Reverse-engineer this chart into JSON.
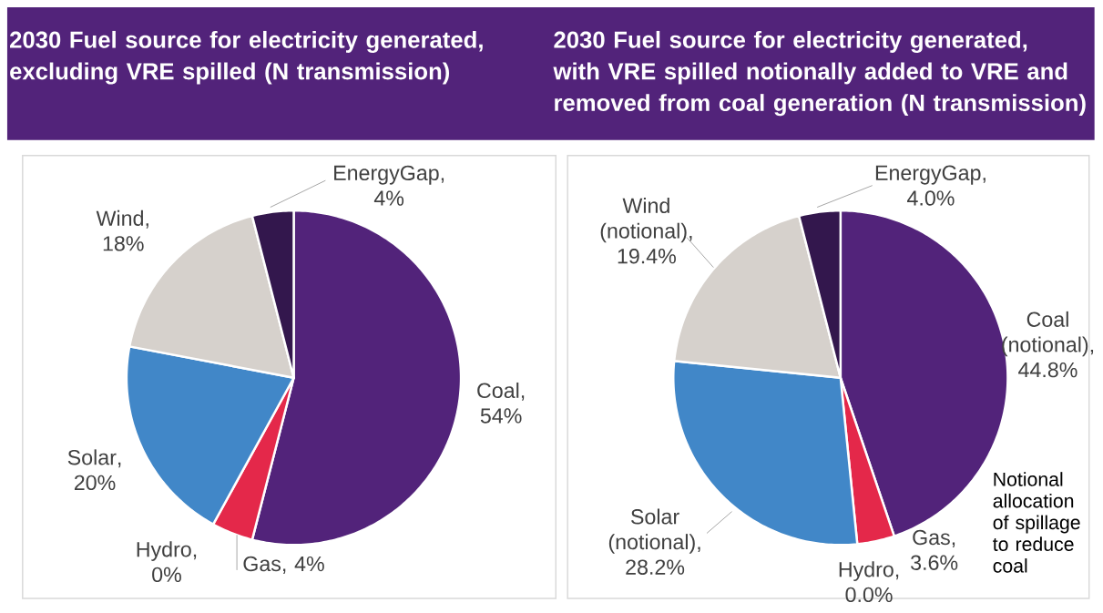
{
  "chart_data": [
    {
      "type": "pie",
      "title": "2030 Fuel source for electricity generated, excluding VRE spilled (N transmission)",
      "categories": [
        "Coal",
        "Gas",
        "Hydro",
        "Solar",
        "Wind",
        "EnergyGap"
      ],
      "values": [
        54,
        4,
        0,
        20,
        18,
        4
      ],
      "colors": [
        "#52237a",
        "#e4284a",
        "#a5a5a5",
        "#4187c8",
        "#d6d1cc",
        "#33174d"
      ],
      "value_labels": [
        ", 54%",
        ", 4%",
        ", 0%",
        ", 20%",
        ", 18%",
        ", 4%"
      ]
    },
    {
      "type": "pie",
      "title": "2030 Fuel source for electricity generated, with VRE spilled notionally added to VRE and removed from coal generation (N transmission)",
      "categories": [
        "Coal (notional)",
        "Gas",
        "Hydro",
        "Solar (notional)",
        "Wind (notional)",
        "EnergyGap"
      ],
      "values": [
        44.8,
        3.6,
        0.0,
        28.2,
        19.4,
        4.0
      ],
      "colors": [
        "#52237a",
        "#e4284a",
        "#a5a5a5",
        "#4187c8",
        "#d6d1cc",
        "#33174d"
      ],
      "value_labels": [
        ", 44.8%",
        ", 3.6%",
        ", 0.0%",
        ", 28.2%",
        ", 19.4%",
        ", 4.0%"
      ],
      "annotations": [
        "Notional allocation of spillage to reduce coal"
      ]
    }
  ]
}
